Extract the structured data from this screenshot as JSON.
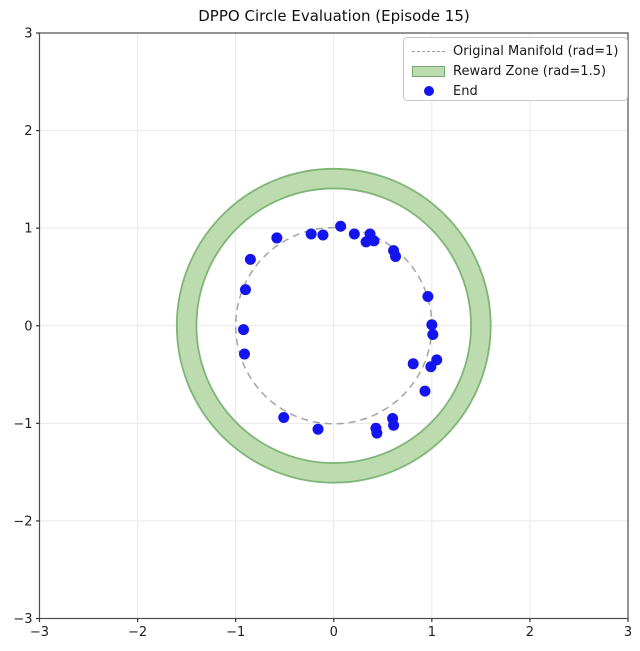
{
  "chart_data": {
    "type": "scatter",
    "title": "DPPO Circle Evaluation (Episode 15)",
    "xlabel": "",
    "ylabel": "",
    "xlim": [
      -3,
      3
    ],
    "ylim": [
      -3,
      3
    ],
    "aspect": "equal",
    "grid": true,
    "grid_color": "#e9e9e9",
    "xticks": [
      -3,
      -2,
      -1,
      0,
      1,
      2,
      3
    ],
    "yticks": [
      -3,
      -2,
      -1,
      0,
      1,
      2,
      3
    ],
    "xtick_labels": [
      "−3",
      "−2",
      "−1",
      "0",
      "1",
      "2",
      "3"
    ],
    "ytick_labels": [
      "−3",
      "−2",
      "−1",
      "0",
      "1",
      "2",
      "3"
    ],
    "legend": {
      "position": "upper right",
      "items": [
        {
          "label": "Original Manifold (rad=1)",
          "marker": "dashed-line",
          "color": "#9e9e9e"
        },
        {
          "label": "Reward Zone (rad=1.5)",
          "marker": "patch",
          "fill": "#bcdcb0",
          "edge": "#74ab6c"
        },
        {
          "label": "End",
          "marker": "dot",
          "color": "#1414ee"
        }
      ]
    },
    "shapes": {
      "original_manifold": {
        "type": "circle",
        "center": [
          0,
          0
        ],
        "radius": 1,
        "style": "dashed",
        "color": "#a3a3a3"
      },
      "reward_zone": {
        "type": "annulus",
        "center": [
          0,
          0
        ],
        "radius": 1.5,
        "inner_radius": 1.4,
        "outer_radius": 1.6,
        "fill": "#bcdcb0",
        "edge": "#7fb576"
      }
    },
    "series": [
      {
        "name": "End",
        "type": "scatter",
        "color": "#1414ee",
        "points": [
          [
            -0.92,
            -0.04
          ],
          [
            -0.91,
            -0.29
          ],
          [
            -0.9,
            0.37
          ],
          [
            -0.85,
            0.68
          ],
          [
            -0.58,
            0.9
          ],
          [
            -0.23,
            0.94
          ],
          [
            -0.11,
            0.93
          ],
          [
            0.07,
            1.02
          ],
          [
            0.21,
            0.94
          ],
          [
            0.33,
            0.86
          ],
          [
            0.37,
            0.94
          ],
          [
            0.41,
            0.87
          ],
          [
            0.61,
            0.77
          ],
          [
            0.63,
            0.71
          ],
          [
            0.96,
            0.3
          ],
          [
            1.0,
            0.01
          ],
          [
            1.01,
            -0.09
          ],
          [
            0.81,
            -0.39
          ],
          [
            1.05,
            -0.35
          ],
          [
            0.99,
            -0.42
          ],
          [
            0.93,
            -0.67
          ],
          [
            0.6,
            -0.95
          ],
          [
            0.61,
            -1.02
          ],
          [
            0.43,
            -1.05
          ],
          [
            0.44,
            -1.1
          ],
          [
            -0.16,
            -1.06
          ],
          [
            -0.51,
            -0.94
          ]
        ]
      }
    ]
  }
}
